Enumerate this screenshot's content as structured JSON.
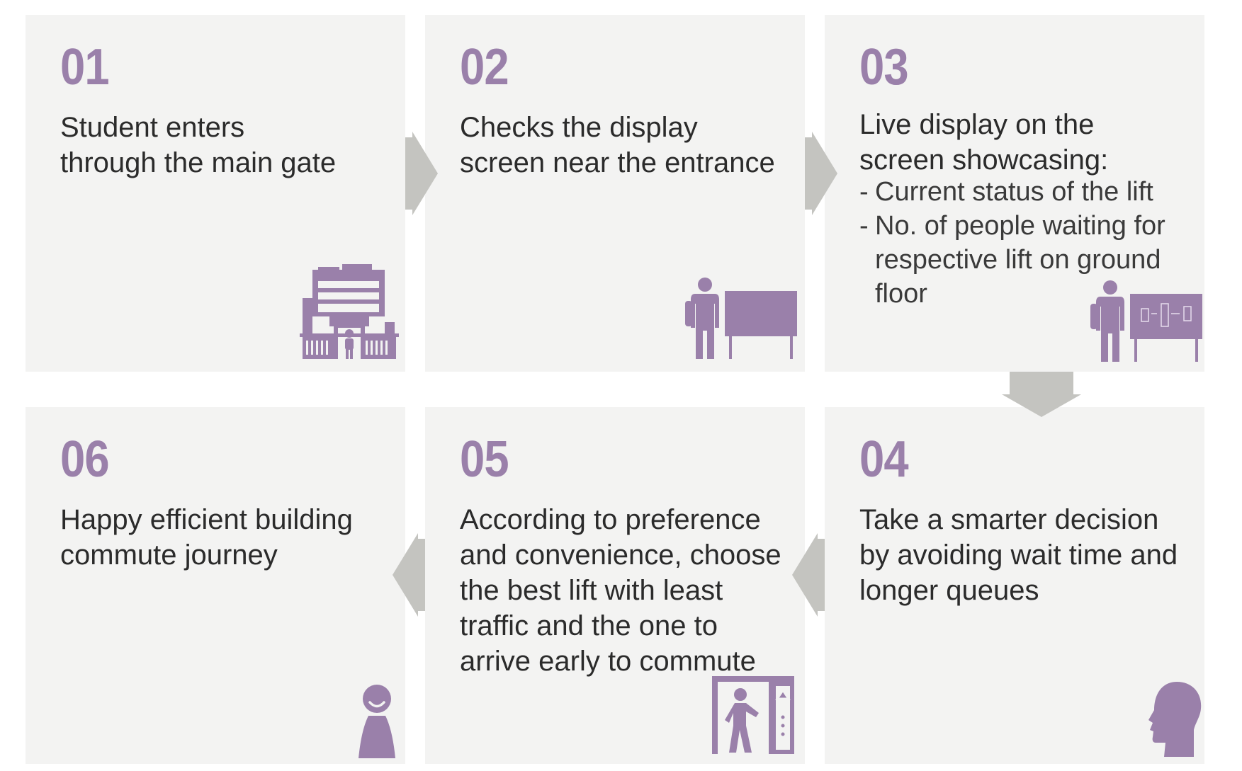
{
  "colors": {
    "accent": "#9a80aa",
    "card_bg": "#f3f3f2",
    "arrow": "#c4c4c0",
    "text": "#2b2b2b"
  },
  "steps": [
    {
      "number": "01",
      "text_lines": [
        "Student enters",
        "through the main gate"
      ],
      "icon": "building-entrance-icon"
    },
    {
      "number": "02",
      "text_lines": [
        "Checks the display",
        "screen near the entrance"
      ],
      "icon": "person-at-display-screen-icon"
    },
    {
      "number": "03",
      "text_lines": [
        "Live display on the",
        "screen showcasing:"
      ],
      "bullets": [
        "Current status of the lift",
        "No. of people waiting for respective lift on ground floor"
      ],
      "icon": "person-at-lift-status-screen-icon"
    },
    {
      "number": "04",
      "text_lines": [
        "Take a smarter decision",
        "by avoiding wait time and",
        "longer queues"
      ],
      "icon": "head-with-arrow-icon"
    },
    {
      "number": "05",
      "text_lines": [
        "According to preference",
        "and convenience, choose",
        "the best lift with least",
        "traffic and the one to",
        "arrive early to commute"
      ],
      "icon": "person-entering-lift-icon"
    },
    {
      "number": "06",
      "text_lines": [
        "Happy efficient building",
        "commute journey"
      ],
      "icon": "happy-person-icon"
    }
  ]
}
